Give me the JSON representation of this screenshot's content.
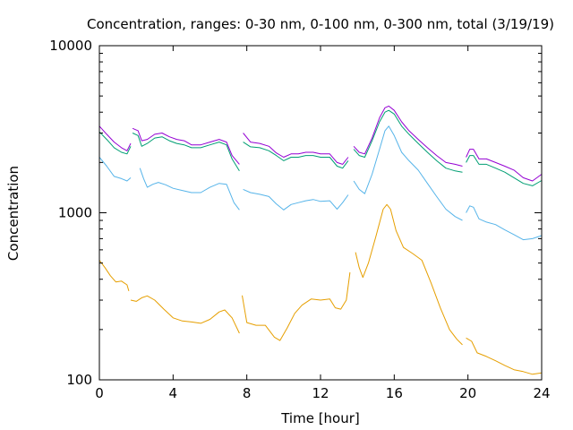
{
  "chart_data": {
    "type": "line",
    "title": "Concentration, ranges: 0-30 nm, 0-100 nm, 0-300 nm, total (3/19/19)",
    "xlabel": "Time [hour]",
    "ylabel": "Concentration",
    "xlim": [
      0,
      24
    ],
    "ylim": [
      100,
      10000
    ],
    "yscale": "log",
    "grid": false,
    "legend": "none",
    "x_ticks": [
      0,
      4,
      8,
      12,
      16,
      20,
      24
    ],
    "x_tick_labels": [
      "0",
      "4",
      "8",
      "12",
      "16",
      "20",
      "24"
    ],
    "y_ticks": [
      100,
      1000,
      10000
    ],
    "y_tick_labels": [
      "100",
      "1000",
      "10000"
    ],
    "series": [
      {
        "color": "#e69f00",
        "segments": [
          [
            [
              0.0,
              520
            ],
            [
              0.3,
              470
            ],
            [
              0.6,
              420
            ],
            [
              0.9,
              385
            ],
            [
              1.2,
              390
            ],
            [
              1.5,
              370
            ],
            [
              1.6,
              340
            ]
          ],
          [
            [
              1.7,
              300
            ],
            [
              2.0,
              295
            ],
            [
              2.3,
              310
            ],
            [
              2.6,
              318
            ],
            [
              3.0,
              300
            ],
            [
              3.5,
              265
            ],
            [
              4.0,
              235
            ],
            [
              4.5,
              225
            ],
            [
              5.0,
              222
            ],
            [
              5.5,
              218
            ],
            [
              6.0,
              230
            ],
            [
              6.5,
              255
            ],
            [
              6.8,
              262
            ],
            [
              7.2,
              235
            ],
            [
              7.6,
              190
            ]
          ],
          [
            [
              7.75,
              320
            ],
            [
              8.0,
              220
            ],
            [
              8.5,
              212
            ],
            [
              9.0,
              212
            ],
            [
              9.5,
              180
            ],
            [
              9.8,
              172
            ],
            [
              10.2,
              205
            ],
            [
              10.6,
              250
            ],
            [
              11.0,
              280
            ],
            [
              11.5,
              305
            ],
            [
              12.0,
              300
            ],
            [
              12.5,
              305
            ],
            [
              12.8,
              270
            ],
            [
              13.1,
              265
            ],
            [
              13.4,
              300
            ],
            [
              13.6,
              440
            ]
          ],
          [
            [
              13.9,
              580
            ],
            [
              14.1,
              470
            ],
            [
              14.3,
              410
            ],
            [
              14.6,
              500
            ],
            [
              15.0,
              720
            ],
            [
              15.4,
              1050
            ],
            [
              15.6,
              1120
            ],
            [
              15.8,
              1050
            ],
            [
              16.1,
              780
            ],
            [
              16.5,
              620
            ],
            [
              17.0,
              570
            ],
            [
              17.5,
              520
            ],
            [
              18.0,
              380
            ],
            [
              18.5,
              270
            ],
            [
              19.0,
              200
            ],
            [
              19.4,
              175
            ],
            [
              19.7,
              162
            ]
          ],
          [
            [
              19.9,
              178
            ],
            [
              20.2,
              170
            ],
            [
              20.5,
              145
            ],
            [
              21.0,
              138
            ],
            [
              21.5,
              130
            ],
            [
              22.0,
              122
            ],
            [
              22.5,
              115
            ],
            [
              23.0,
              112
            ],
            [
              23.5,
              108
            ],
            [
              24.0,
              110
            ]
          ]
        ]
      },
      {
        "color": "#56b4e9",
        "segments": [
          [
            [
              0.0,
              2150
            ],
            [
              0.4,
              1900
            ],
            [
              0.8,
              1650
            ],
            [
              1.2,
              1600
            ],
            [
              1.5,
              1550
            ],
            [
              1.7,
              1620
            ]
          ],
          [
            [
              2.2,
              1850
            ],
            [
              2.4,
              1600
            ],
            [
              2.6,
              1420
            ],
            [
              2.9,
              1480
            ],
            [
              3.2,
              1520
            ],
            [
              3.6,
              1470
            ],
            [
              4.0,
              1400
            ],
            [
              4.5,
              1360
            ],
            [
              5.0,
              1320
            ],
            [
              5.5,
              1320
            ],
            [
              6.0,
              1420
            ],
            [
              6.5,
              1500
            ],
            [
              6.9,
              1480
            ],
            [
              7.3,
              1150
            ],
            [
              7.6,
              1040
            ]
          ],
          [
            [
              7.8,
              1380
            ],
            [
              8.2,
              1320
            ],
            [
              8.7,
              1290
            ],
            [
              9.2,
              1250
            ],
            [
              9.6,
              1130
            ],
            [
              10.0,
              1040
            ],
            [
              10.4,
              1120
            ],
            [
              10.8,
              1150
            ],
            [
              11.2,
              1180
            ],
            [
              11.6,
              1200
            ],
            [
              12.0,
              1170
            ],
            [
              12.5,
              1180
            ],
            [
              12.9,
              1050
            ],
            [
              13.2,
              1150
            ],
            [
              13.5,
              1280
            ]
          ],
          [
            [
              13.8,
              1550
            ],
            [
              14.1,
              1380
            ],
            [
              14.4,
              1300
            ],
            [
              14.8,
              1700
            ],
            [
              15.2,
              2400
            ],
            [
              15.5,
              3100
            ],
            [
              15.7,
              3300
            ],
            [
              16.0,
              2900
            ],
            [
              16.4,
              2300
            ],
            [
              16.8,
              2050
            ],
            [
              17.3,
              1800
            ],
            [
              17.8,
              1500
            ],
            [
              18.3,
              1250
            ],
            [
              18.8,
              1050
            ],
            [
              19.3,
              950
            ],
            [
              19.7,
              900
            ]
          ],
          [
            [
              19.9,
              1000
            ],
            [
              20.1,
              1100
            ],
            [
              20.3,
              1080
            ],
            [
              20.6,
              920
            ],
            [
              21.0,
              880
            ],
            [
              21.5,
              850
            ],
            [
              22.0,
              790
            ],
            [
              22.5,
              740
            ],
            [
              23.0,
              690
            ],
            [
              23.5,
              700
            ],
            [
              24.0,
              730
            ]
          ]
        ]
      },
      {
        "color": "#009e73",
        "segments": [
          [
            [
              0.0,
              3050
            ],
            [
              0.4,
              2750
            ],
            [
              0.8,
              2450
            ],
            [
              1.2,
              2300
            ],
            [
              1.5,
              2250
            ],
            [
              1.7,
              2500
            ]
          ],
          [
            [
              1.8,
              3000
            ],
            [
              2.1,
              2900
            ],
            [
              2.3,
              2500
            ],
            [
              2.6,
              2600
            ],
            [
              3.0,
              2800
            ],
            [
              3.4,
              2850
            ],
            [
              3.8,
              2700
            ],
            [
              4.2,
              2600
            ],
            [
              4.6,
              2550
            ],
            [
              5.0,
              2450
            ],
            [
              5.5,
              2450
            ],
            [
              6.0,
              2550
            ],
            [
              6.5,
              2650
            ],
            [
              6.9,
              2550
            ],
            [
              7.2,
              2100
            ],
            [
              7.6,
              1780
            ]
          ],
          [
            [
              7.8,
              2650
            ],
            [
              8.2,
              2480
            ],
            [
              8.7,
              2450
            ],
            [
              9.2,
              2350
            ],
            [
              9.6,
              2200
            ],
            [
              10.0,
              2050
            ],
            [
              10.4,
              2150
            ],
            [
              10.8,
              2150
            ],
            [
              11.2,
              2200
            ],
            [
              11.6,
              2200
            ],
            [
              12.0,
              2150
            ],
            [
              12.5,
              2150
            ],
            [
              12.9,
              1900
            ],
            [
              13.2,
              1850
            ],
            [
              13.5,
              2050
            ]
          ],
          [
            [
              13.8,
              2400
            ],
            [
              14.1,
              2200
            ],
            [
              14.4,
              2150
            ],
            [
              14.8,
              2700
            ],
            [
              15.2,
              3500
            ],
            [
              15.5,
              4000
            ],
            [
              15.7,
              4100
            ],
            [
              16.0,
              3900
            ],
            [
              16.4,
              3300
            ],
            [
              16.8,
              2950
            ],
            [
              17.3,
              2600
            ],
            [
              17.8,
              2300
            ],
            [
              18.3,
              2050
            ],
            [
              18.8,
              1850
            ],
            [
              19.3,
              1780
            ],
            [
              19.7,
              1750
            ]
          ],
          [
            [
              19.9,
              2000
            ],
            [
              20.1,
              2200
            ],
            [
              20.3,
              2200
            ],
            [
              20.6,
              1950
            ],
            [
              21.0,
              1950
            ],
            [
              21.5,
              1850
            ],
            [
              22.0,
              1750
            ],
            [
              22.5,
              1620
            ],
            [
              23.0,
              1500
            ],
            [
              23.5,
              1450
            ],
            [
              24.0,
              1560
            ]
          ]
        ]
      },
      {
        "color": "#9400d3",
        "segments": [
          [
            [
              0.0,
              3300
            ],
            [
              0.4,
              2950
            ],
            [
              0.8,
              2650
            ],
            [
              1.2,
              2450
            ],
            [
              1.5,
              2350
            ],
            [
              1.7,
              2600
            ]
          ],
          [
            [
              1.8,
              3200
            ],
            [
              2.1,
              3100
            ],
            [
              2.3,
              2700
            ],
            [
              2.6,
              2750
            ],
            [
              3.0,
              2950
            ],
            [
              3.4,
              3000
            ],
            [
              3.8,
              2850
            ],
            [
              4.2,
              2750
            ],
            [
              4.6,
              2700
            ],
            [
              5.0,
              2550
            ],
            [
              5.5,
              2550
            ],
            [
              6.0,
              2650
            ],
            [
              6.5,
              2750
            ],
            [
              6.9,
              2650
            ],
            [
              7.2,
              2200
            ],
            [
              7.6,
              1950
            ]
          ],
          [
            [
              7.8,
              3000
            ],
            [
              8.2,
              2650
            ],
            [
              8.7,
              2600
            ],
            [
              9.2,
              2500
            ],
            [
              9.6,
              2280
            ],
            [
              10.0,
              2150
            ],
            [
              10.4,
              2250
            ],
            [
              10.8,
              2250
            ],
            [
              11.2,
              2300
            ],
            [
              11.6,
              2300
            ],
            [
              12.0,
              2250
            ],
            [
              12.5,
              2250
            ],
            [
              12.9,
              2000
            ],
            [
              13.2,
              1950
            ],
            [
              13.5,
              2150
            ]
          ],
          [
            [
              13.8,
              2500
            ],
            [
              14.1,
              2300
            ],
            [
              14.4,
              2250
            ],
            [
              14.8,
              2800
            ],
            [
              15.2,
              3700
            ],
            [
              15.5,
              4250
            ],
            [
              15.7,
              4350
            ],
            [
              16.0,
              4100
            ],
            [
              16.4,
              3500
            ],
            [
              16.8,
              3100
            ],
            [
              17.3,
              2750
            ],
            [
              17.8,
              2450
            ],
            [
              18.3,
              2200
            ],
            [
              18.8,
              2000
            ],
            [
              19.3,
              1950
            ],
            [
              19.7,
              1900
            ]
          ],
          [
            [
              19.9,
              2150
            ],
            [
              20.1,
              2400
            ],
            [
              20.3,
              2400
            ],
            [
              20.6,
              2100
            ],
            [
              21.0,
              2100
            ],
            [
              21.5,
              2000
            ],
            [
              22.0,
              1900
            ],
            [
              22.5,
              1800
            ],
            [
              23.0,
              1620
            ],
            [
              23.5,
              1550
            ],
            [
              24.0,
              1700
            ]
          ]
        ]
      }
    ]
  }
}
